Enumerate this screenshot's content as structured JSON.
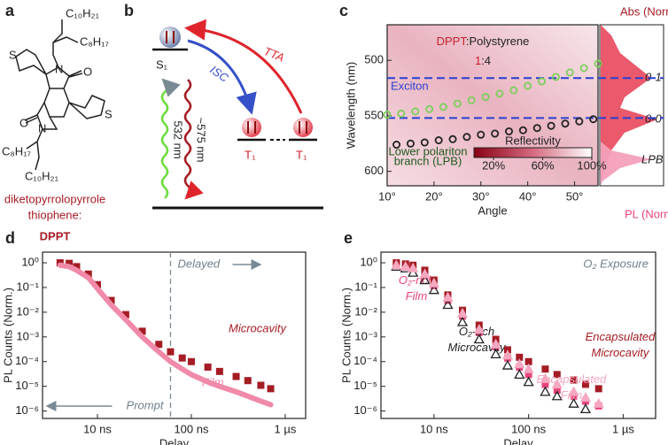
{
  "panel_labels": [
    "a",
    "b",
    "c",
    "d",
    "e"
  ],
  "molecule": {
    "chains": [
      "C₁₀H₂₁",
      "C₈H₁₇",
      "C₈H₁₇",
      "C₁₀H₂₁"
    ],
    "name_lines": [
      "diketopyrrolopyrrole",
      "thiophene:"
    ],
    "abbreviation": "DPPT"
  },
  "energy_diagram": {
    "singlet": "S₁",
    "triplets": [
      "T₁",
      "T₁"
    ],
    "processes": [
      "TTA",
      "ISC"
    ],
    "excitation": "532 nm",
    "emission": "~575 nm"
  },
  "chart_data": [
    {
      "type": "scatter",
      "title_parts": [
        "DPPT",
        ":Polystyrene"
      ],
      "ratio_parts": [
        "1",
        ":4"
      ],
      "x_label": "Angle",
      "y_label": "Wavelength (nm)",
      "xlim": [
        10,
        55
      ],
      "xticks": [
        {
          "value": 10,
          "label": "10°"
        },
        {
          "value": 20,
          "label": "20°"
        },
        {
          "value": 30,
          "label": "30°"
        },
        {
          "value": 40,
          "label": "40°"
        },
        {
          "value": 50,
          "label": "50°"
        }
      ],
      "ylim": [
        468,
        613
      ],
      "y_inverted": true,
      "yticks": [
        500,
        550,
        600
      ],
      "hlines": [
        {
          "value": 516,
          "label": "Exciton"
        },
        {
          "value": 552
        }
      ],
      "annotation_lines": [
        "Lower polariton",
        "branch (LPB)"
      ],
      "series": [
        {
          "color": "#7ccf5a",
          "x": [
            10,
            13,
            16,
            19,
            22,
            25,
            28,
            31,
            34,
            37,
            40,
            43,
            46,
            49,
            52,
            55
          ],
          "values": [
            549,
            548,
            546,
            544,
            542,
            539,
            536,
            533,
            530,
            527,
            523,
            519,
            515,
            511,
            507,
            503
          ]
        },
        {
          "color": "#222222",
          "x": [
            12,
            15,
            18,
            21,
            24,
            27,
            30,
            33,
            36,
            39,
            42,
            45,
            48,
            51,
            54
          ],
          "values": [
            576,
            575,
            574,
            572,
            571,
            569,
            567,
            566,
            564,
            563,
            561,
            559,
            557,
            555,
            553
          ]
        }
      ],
      "colorbar": {
        "label": "Reflectivity",
        "lim": [
          4,
          100
        ],
        "ticks": [
          {
            "value": 20,
            "label": "20%"
          },
          {
            "value": 60,
            "label": "60%"
          },
          {
            "value": 100,
            "label": "100%"
          }
        ]
      },
      "side_panel": {
        "top_label": "Abs (Norm.)",
        "bottom_label": "PL (Norm.)",
        "peak_labels": [
          "0-1",
          "0-0",
          "LPB"
        ]
      }
    },
    {
      "type": "line",
      "x_label": "Delay",
      "y_label": "PL Counts (Norm.)",
      "log_x": true,
      "log_y": true,
      "xlim": [
        2.6,
        1650
      ],
      "xticks": [
        {
          "value": 10,
          "label": "10 ns"
        },
        {
          "value": 100,
          "label": "100 ns"
        },
        {
          "value": 1000,
          "label": "1 µs"
        }
      ],
      "ylim": [
        5e-07,
        2.7
      ],
      "yticks": [
        {
          "value": 1,
          "label": "10⁰"
        },
        {
          "value": 0.1,
          "label": "10⁻¹"
        },
        {
          "value": 0.01,
          "label": "10⁻²"
        },
        {
          "value": 0.001,
          "label": "10⁻³"
        },
        {
          "value": 0.0001,
          "label": "10⁻⁴"
        },
        {
          "value": 1e-05,
          "label": "10⁻⁵"
        },
        {
          "value": 1e-06,
          "label": "10⁻⁶"
        }
      ],
      "vline": 60,
      "annotations": [
        "Delayed",
        "Prompt"
      ],
      "series": [
        {
          "name": "Microcavity",
          "color": "#a51c24",
          "marker": "square",
          "x": [
            4,
            5,
            6,
            8,
            10,
            14,
            20,
            30,
            45,
            60,
            80,
            100,
            150,
            200,
            300,
            400,
            550,
            700
          ],
          "values": [
            1,
            0.95,
            0.7,
            0.35,
            0.13,
            0.03,
            0.008,
            0.0017,
            0.0005,
            0.00025,
            0.00014,
            0.0001,
            6e-05,
            4e-05,
            2.5e-05,
            1.7e-05,
            1.1e-05,
            8e-06
          ]
        },
        {
          "name": "Film",
          "color": "#f08aa8",
          "marker": "line",
          "x": [
            4,
            5,
            6,
            8,
            10,
            14,
            20,
            30,
            45,
            60,
            80,
            100,
            150,
            200,
            300,
            400,
            550,
            700
          ],
          "values": [
            0.8,
            0.7,
            0.5,
            0.25,
            0.09,
            0.02,
            0.005,
            0.001,
            0.00025,
            0.0001,
            5e-05,
            3e-05,
            1.5e-05,
            1e-05,
            6e-06,
            4e-06,
            2.5e-06,
            1.8e-06
          ]
        }
      ]
    },
    {
      "type": "line",
      "x_label": "Delay",
      "y_label": "PL Counts (Norm.)",
      "log_x": true,
      "log_y": true,
      "xlim": [
        2.75,
        2200
      ],
      "xticks": [
        {
          "value": 10,
          "label": "10 ns"
        },
        {
          "value": 100,
          "label": "100 ns"
        },
        {
          "value": 1000,
          "label": "1 µs"
        }
      ],
      "ylim": [
        5e-07,
        2.7
      ],
      "yticks": [
        {
          "value": 1,
          "label": "10⁰"
        },
        {
          "value": 0.1,
          "label": "10⁻¹"
        },
        {
          "value": 0.01,
          "label": "10⁻²"
        },
        {
          "value": 0.001,
          "label": "10⁻³"
        },
        {
          "value": 0.0001,
          "label": "10⁻⁴"
        },
        {
          "value": 1e-05,
          "label": "10⁻⁵"
        },
        {
          "value": 1e-06,
          "label": "10⁻⁶"
        }
      ],
      "annotations": [
        "O₂ Exposure"
      ],
      "series": [
        {
          "name": "O₂-rich Film",
          "color": "#e8457a",
          "marker": "square",
          "x": [
            4,
            5,
            6,
            8,
            10,
            14,
            20,
            30,
            45,
            60,
            80,
            100,
            150,
            200,
            300,
            400,
            550
          ],
          "values": [
            0.9,
            0.8,
            0.6,
            0.3,
            0.12,
            0.03,
            0.007,
            0.0015,
            0.0004,
            0.00014,
            6e-05,
            3e-05,
            1.2e-05,
            7e-06,
            4e-06,
            2.5e-06,
            1.6e-06
          ]
        },
        {
          "name": "O₂-rich Microcavity",
          "color": "#222222",
          "marker": "triangle-open",
          "x": [
            4,
            5,
            6,
            8,
            10,
            14,
            20,
            30,
            45,
            60,
            80,
            100,
            150,
            200,
            300,
            400
          ],
          "values": [
            0.7,
            0.6,
            0.4,
            0.2,
            0.08,
            0.02,
            0.004,
            0.0008,
            0.0002,
            7e-05,
            3e-05,
            1.5e-05,
            6e-06,
            4e-06,
            2e-06,
            1.2e-06
          ]
        },
        {
          "name": "Encapsulated Microcavity",
          "color": "#a51c24",
          "marker": "square",
          "x": [
            4,
            5,
            6,
            8,
            10,
            14,
            20,
            30,
            45,
            60,
            80,
            100,
            150,
            200,
            300,
            400,
            550
          ],
          "values": [
            1,
            0.9,
            0.8,
            0.5,
            0.2,
            0.05,
            0.012,
            0.003,
            0.0008,
            0.0003,
            0.00015,
            0.0001,
            5e-05,
            3e-05,
            1.8e-05,
            1.2e-05,
            8e-06
          ]
        },
        {
          "name": "Encapsulated Film",
          "color": "#f5a8c0",
          "marker": "triangle",
          "x": [
            4,
            5,
            6,
            8,
            10,
            14,
            20,
            30,
            45,
            60,
            80,
            100,
            150,
            200,
            300,
            400,
            550
          ],
          "values": [
            0.8,
            0.7,
            0.6,
            0.35,
            0.15,
            0.04,
            0.009,
            0.002,
            0.0005,
            0.00018,
            8e-05,
            5e-05,
            2e-05,
            1.2e-05,
            6e-06,
            3.5e-06,
            2e-06
          ]
        }
      ]
    }
  ]
}
